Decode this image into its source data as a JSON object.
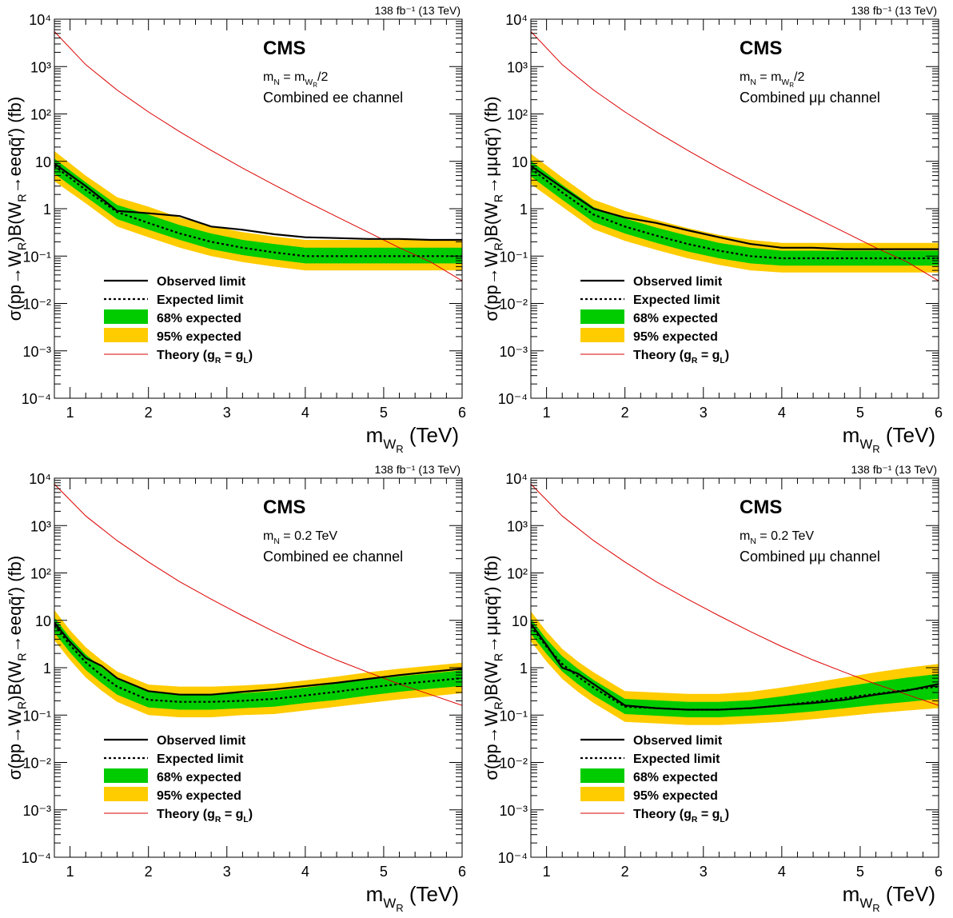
{
  "figure": {
    "lumi_label": "138 fb⁻¹ (13 TeV)",
    "experiment": "CMS",
    "x_axis_label": "m_{W_R} (TeV)",
    "legend": {
      "observed": "Observed limit",
      "expected": "Expected limit",
      "band68": "68% expected",
      "band95": "95% expected",
      "theory": "Theory (g_R = g_L)"
    },
    "colors": {
      "band68": "#00cc00",
      "band95": "#ffcc00",
      "theory": "#dd0000",
      "limits": "#000000"
    }
  },
  "chart_data": [
    {
      "type": "line",
      "panel": "top-left",
      "mass_hypothesis": "m_N = m_{W_R}/2",
      "channel_label": "Combined ee channel",
      "ylabel": "σ(pp→W_R)B(W_R→eeqq̄′) (fb)",
      "y_scale": "log",
      "xlim": [
        0.8,
        6.0
      ],
      "ylim": [
        0.0001,
        10000
      ],
      "x_ticks": [
        1,
        2,
        3,
        4,
        5,
        6
      ],
      "y_tick_labels": [
        "10⁻⁴",
        "10⁻³",
        "10⁻²",
        "10⁻¹",
        "1",
        "10",
        "10²",
        "10³",
        "10⁴"
      ],
      "theory": {
        "x": [
          0.8,
          1.2,
          1.6,
          2.0,
          2.4,
          2.8,
          3.2,
          3.6,
          4.0,
          4.4,
          4.8,
          5.2,
          5.6,
          6.0
        ],
        "y": [
          5500,
          1100,
          320,
          110,
          42,
          17,
          7.2,
          3.2,
          1.45,
          0.68,
          0.32,
          0.15,
          0.075,
          0.03
        ]
      },
      "observed": {
        "x": [
          0.8,
          1.2,
          1.6,
          2.0,
          2.4,
          2.8,
          3.2,
          3.6,
          4.0,
          4.4,
          4.8,
          5.2,
          5.6,
          6.0
        ],
        "y": [
          9.0,
          3.0,
          0.9,
          0.8,
          0.7,
          0.42,
          0.36,
          0.29,
          0.25,
          0.24,
          0.23,
          0.23,
          0.22,
          0.22
        ]
      },
      "expected": {
        "x": [
          0.8,
          1.2,
          1.6,
          2.0,
          2.4,
          2.8,
          3.2,
          3.6,
          4.0,
          4.4,
          4.8,
          5.2,
          5.6,
          6.0
        ],
        "y": [
          8.0,
          2.5,
          0.85,
          0.5,
          0.3,
          0.2,
          0.15,
          0.12,
          0.1,
          0.1,
          0.1,
          0.1,
          0.1,
          0.1
        ]
      },
      "band68": {
        "x": [
          0.8,
          1.2,
          1.6,
          2.0,
          2.4,
          2.8,
          3.2,
          3.6,
          4.0,
          4.4,
          4.8,
          5.2,
          5.6,
          6.0
        ],
        "lo": [
          5.5,
          1.8,
          0.6,
          0.36,
          0.22,
          0.14,
          0.105,
          0.085,
          0.07,
          0.07,
          0.07,
          0.07,
          0.07,
          0.07
        ],
        "hi": [
          11.5,
          3.6,
          1.2,
          0.75,
          0.45,
          0.3,
          0.22,
          0.18,
          0.15,
          0.15,
          0.15,
          0.15,
          0.15,
          0.15
        ]
      },
      "band95": {
        "x": [
          0.8,
          1.2,
          1.6,
          2.0,
          2.4,
          2.8,
          3.2,
          3.6,
          4.0,
          4.4,
          4.8,
          5.2,
          5.6,
          6.0
        ],
        "lo": [
          3.8,
          1.3,
          0.42,
          0.25,
          0.15,
          0.1,
          0.075,
          0.06,
          0.05,
          0.05,
          0.05,
          0.05,
          0.05,
          0.05
        ],
        "hi": [
          16.5,
          5.0,
          1.75,
          1.1,
          0.65,
          0.43,
          0.32,
          0.26,
          0.22,
          0.22,
          0.22,
          0.22,
          0.22,
          0.22
        ]
      }
    },
    {
      "type": "line",
      "panel": "top-right",
      "mass_hypothesis": "m_N = m_{W_R}/2",
      "channel_label": "Combined μμ channel",
      "ylabel": "σ(pp→W_R)B(W_R→μμqq̄′) (fb)",
      "y_scale": "log",
      "xlim": [
        0.8,
        6.0
      ],
      "ylim": [
        0.0001,
        10000
      ],
      "x_ticks": [
        1,
        2,
        3,
        4,
        5,
        6
      ],
      "y_tick_labels": [
        "10⁻⁴",
        "10⁻³",
        "10⁻²",
        "10⁻¹",
        "1",
        "10",
        "10²",
        "10³",
        "10⁴"
      ],
      "theory": {
        "x": [
          0.8,
          1.2,
          1.6,
          2.0,
          2.4,
          2.8,
          3.2,
          3.6,
          4.0,
          4.4,
          4.8,
          5.2,
          5.6,
          6.0
        ],
        "y": [
          5500,
          1100,
          320,
          110,
          42,
          17,
          7.2,
          3.2,
          1.45,
          0.68,
          0.32,
          0.15,
          0.075,
          0.03
        ]
      },
      "observed": {
        "x": [
          0.8,
          1.2,
          1.6,
          2.0,
          2.4,
          2.8,
          3.2,
          3.6,
          4.0,
          4.4,
          4.8,
          5.2,
          5.6,
          6.0
        ],
        "y": [
          8.0,
          2.8,
          1.0,
          0.65,
          0.5,
          0.35,
          0.25,
          0.18,
          0.15,
          0.15,
          0.14,
          0.14,
          0.14,
          0.14
        ]
      },
      "expected": {
        "x": [
          0.8,
          1.2,
          1.6,
          2.0,
          2.4,
          2.8,
          3.2,
          3.6,
          4.0,
          4.4,
          4.8,
          5.2,
          5.6,
          6.0
        ],
        "y": [
          7.0,
          2.2,
          0.75,
          0.42,
          0.27,
          0.18,
          0.13,
          0.1,
          0.09,
          0.09,
          0.09,
          0.09,
          0.09,
          0.09
        ]
      },
      "band68": {
        "x": [
          0.8,
          1.2,
          1.6,
          2.0,
          2.4,
          2.8,
          3.2,
          3.6,
          4.0,
          4.4,
          4.8,
          5.2,
          5.6,
          6.0
        ],
        "lo": [
          4.8,
          1.55,
          0.52,
          0.3,
          0.19,
          0.125,
          0.09,
          0.07,
          0.063,
          0.063,
          0.063,
          0.063,
          0.063,
          0.063
        ],
        "hi": [
          10.2,
          3.2,
          1.08,
          0.62,
          0.4,
          0.27,
          0.19,
          0.15,
          0.13,
          0.13,
          0.13,
          0.13,
          0.13,
          0.13
        ]
      },
      "band95": {
        "x": [
          0.8,
          1.2,
          1.6,
          2.0,
          2.4,
          2.8,
          3.2,
          3.6,
          4.0,
          4.4,
          4.8,
          5.2,
          5.6,
          6.0
        ],
        "lo": [
          3.3,
          1.1,
          0.37,
          0.21,
          0.135,
          0.09,
          0.065,
          0.05,
          0.045,
          0.045,
          0.045,
          0.045,
          0.045,
          0.045
        ],
        "hi": [
          14.5,
          4.6,
          1.55,
          0.9,
          0.58,
          0.39,
          0.28,
          0.22,
          0.19,
          0.19,
          0.19,
          0.19,
          0.19,
          0.19
        ]
      }
    },
    {
      "type": "line",
      "panel": "bottom-left",
      "mass_hypothesis": "m_N = 0.2 TeV",
      "channel_label": "Combined ee channel",
      "ylabel": "σ(pp→W_R)B(W_R→eeqq̄′) (fb)",
      "y_scale": "log",
      "xlim": [
        0.8,
        6.0
      ],
      "ylim": [
        0.0001,
        10000
      ],
      "x_ticks": [
        1,
        2,
        3,
        4,
        5,
        6
      ],
      "y_tick_labels": [
        "10⁻⁴",
        "10⁻³",
        "10⁻²",
        "10⁻¹",
        "1",
        "10",
        "10²",
        "10³",
        "10⁴"
      ],
      "theory": {
        "x": [
          0.8,
          1.2,
          1.6,
          2.0,
          2.4,
          2.8,
          3.2,
          3.6,
          4.0,
          4.4,
          4.8,
          5.2,
          5.6,
          6.0
        ],
        "y": [
          7500,
          1600,
          480,
          170,
          65,
          28,
          12.5,
          5.8,
          2.8,
          1.45,
          0.8,
          0.45,
          0.27,
          0.16
        ]
      },
      "observed": {
        "x": [
          0.8,
          1.0,
          1.2,
          1.4,
          1.6,
          2.0,
          2.4,
          2.8,
          3.2,
          3.6,
          4.0,
          4.4,
          4.8,
          5.2,
          5.6,
          6.0
        ],
        "y": [
          9.0,
          3.5,
          1.6,
          1.1,
          0.6,
          0.32,
          0.27,
          0.27,
          0.31,
          0.35,
          0.41,
          0.48,
          0.58,
          0.7,
          0.82,
          0.95
        ]
      },
      "expected": {
        "x": [
          0.8,
          1.0,
          1.2,
          1.4,
          1.6,
          2.0,
          2.4,
          2.8,
          3.2,
          3.6,
          4.0,
          4.4,
          4.8,
          5.2,
          5.6,
          6.0
        ],
        "y": [
          8.0,
          3.0,
          1.3,
          0.7,
          0.4,
          0.21,
          0.19,
          0.19,
          0.2,
          0.22,
          0.26,
          0.31,
          0.38,
          0.45,
          0.52,
          0.6
        ]
      },
      "band68": {
        "x": [
          0.8,
          1.0,
          1.2,
          1.4,
          1.6,
          2.0,
          2.4,
          2.8,
          3.2,
          3.6,
          4.0,
          4.4,
          4.8,
          5.2,
          5.6,
          6.0
        ],
        "lo": [
          5.5,
          2.1,
          0.9,
          0.48,
          0.27,
          0.145,
          0.13,
          0.13,
          0.14,
          0.15,
          0.18,
          0.21,
          0.26,
          0.31,
          0.36,
          0.41
        ],
        "hi": [
          11.5,
          4.3,
          1.9,
          1.02,
          0.58,
          0.31,
          0.28,
          0.28,
          0.29,
          0.32,
          0.38,
          0.46,
          0.56,
          0.66,
          0.76,
          0.88
        ]
      },
      "band95": {
        "x": [
          0.8,
          1.0,
          1.2,
          1.4,
          1.6,
          2.0,
          2.4,
          2.8,
          3.2,
          3.6,
          4.0,
          4.4,
          4.8,
          5.2,
          5.6,
          6.0
        ],
        "lo": [
          3.8,
          1.45,
          0.62,
          0.33,
          0.19,
          0.1,
          0.09,
          0.09,
          0.1,
          0.105,
          0.125,
          0.15,
          0.18,
          0.215,
          0.25,
          0.29
        ],
        "hi": [
          16.5,
          6.2,
          2.7,
          1.45,
          0.83,
          0.44,
          0.4,
          0.4,
          0.42,
          0.46,
          0.54,
          0.65,
          0.8,
          0.95,
          1.1,
          1.27
        ]
      }
    },
    {
      "type": "line",
      "panel": "bottom-right",
      "mass_hypothesis": "m_N = 0.2 TeV",
      "channel_label": "Combined μμ channel",
      "ylabel": "σ(pp→W_R)B(W_R→μμqq̄′) (fb)",
      "y_scale": "log",
      "xlim": [
        0.8,
        6.0
      ],
      "ylim": [
        0.0001,
        10000
      ],
      "x_ticks": [
        1,
        2,
        3,
        4,
        5,
        6
      ],
      "y_tick_labels": [
        "10⁻⁴",
        "10⁻³",
        "10⁻²",
        "10⁻¹",
        "1",
        "10",
        "10²",
        "10³",
        "10⁴"
      ],
      "theory": {
        "x": [
          0.8,
          1.2,
          1.6,
          2.0,
          2.4,
          2.8,
          3.2,
          3.6,
          4.0,
          4.4,
          4.8,
          5.2,
          5.6,
          6.0
        ],
        "y": [
          7500,
          1600,
          480,
          170,
          65,
          28,
          12.5,
          5.8,
          2.8,
          1.45,
          0.8,
          0.45,
          0.27,
          0.16
        ]
      },
      "observed": {
        "x": [
          0.8,
          1.0,
          1.2,
          1.4,
          1.6,
          2.0,
          2.4,
          2.8,
          3.2,
          3.6,
          4.0,
          4.4,
          4.8,
          5.2,
          5.6,
          6.0
        ],
        "y": [
          8.5,
          3.0,
          1.0,
          0.75,
          0.45,
          0.16,
          0.14,
          0.13,
          0.13,
          0.14,
          0.16,
          0.18,
          0.21,
          0.27,
          0.33,
          0.45
        ]
      },
      "expected": {
        "x": [
          0.8,
          1.0,
          1.2,
          1.4,
          1.6,
          2.0,
          2.4,
          2.8,
          3.2,
          3.6,
          4.0,
          4.4,
          4.8,
          5.2,
          5.6,
          6.0
        ],
        "y": [
          7.5,
          2.8,
          1.2,
          0.65,
          0.38,
          0.15,
          0.14,
          0.13,
          0.13,
          0.14,
          0.16,
          0.19,
          0.23,
          0.28,
          0.34,
          0.4
        ]
      },
      "band68": {
        "x": [
          0.8,
          1.0,
          1.2,
          1.4,
          1.6,
          2.0,
          2.4,
          2.8,
          3.2,
          3.6,
          4.0,
          4.4,
          4.8,
          5.2,
          5.6,
          6.0
        ],
        "lo": [
          5.2,
          1.95,
          0.83,
          0.45,
          0.26,
          0.105,
          0.097,
          0.09,
          0.09,
          0.097,
          0.105,
          0.12,
          0.14,
          0.165,
          0.19,
          0.22
        ],
        "hi": [
          10.8,
          4.0,
          1.75,
          0.95,
          0.55,
          0.22,
          0.205,
          0.19,
          0.19,
          0.205,
          0.25,
          0.31,
          0.4,
          0.5,
          0.62,
          0.74
        ]
      },
      "band95": {
        "x": [
          0.8,
          1.0,
          1.2,
          1.4,
          1.6,
          2.0,
          2.4,
          2.8,
          3.2,
          3.6,
          4.0,
          4.4,
          4.8,
          5.2,
          5.6,
          6.0
        ],
        "lo": [
          3.6,
          1.35,
          0.58,
          0.31,
          0.18,
          0.072,
          0.067,
          0.062,
          0.062,
          0.066,
          0.072,
          0.082,
          0.095,
          0.11,
          0.125,
          0.14
        ],
        "hi": [
          15.5,
          5.8,
          2.5,
          1.35,
          0.8,
          0.32,
          0.3,
          0.28,
          0.28,
          0.31,
          0.38,
          0.48,
          0.62,
          0.8,
          1.0,
          1.2
        ]
      }
    }
  ]
}
